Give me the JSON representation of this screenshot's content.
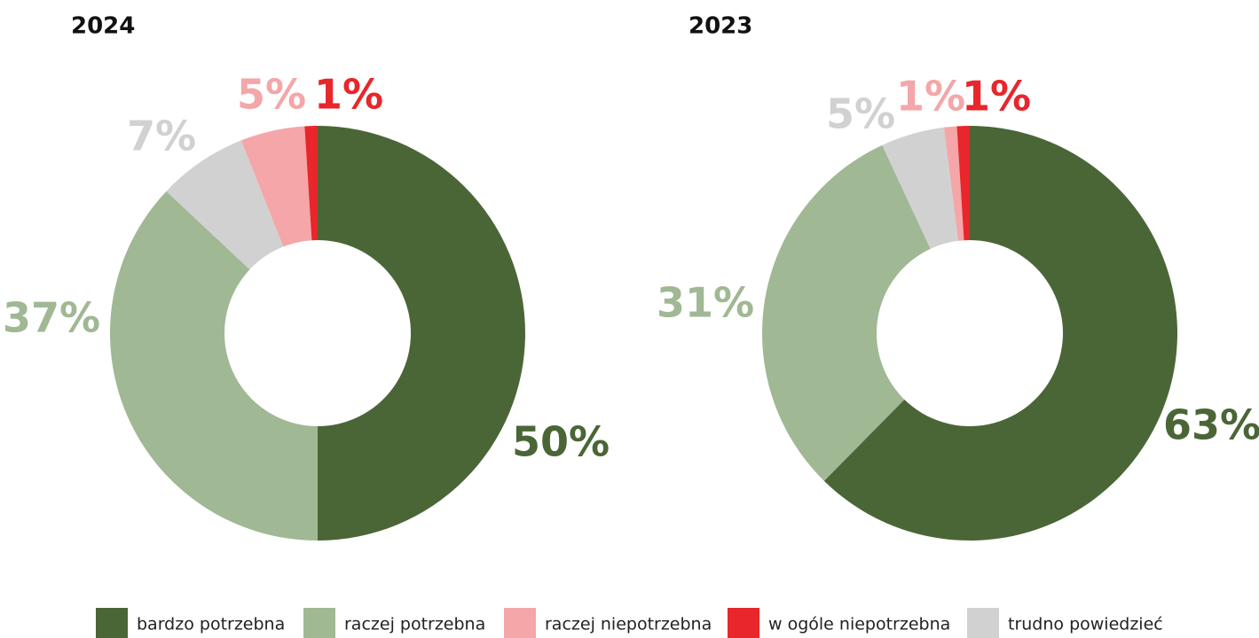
{
  "chart_data": [
    {
      "type": "pie",
      "title": "2024",
      "categories": [
        "bardzo potrzebna",
        "raczej potrzebna",
        "trudno powiedzieć",
        "raczej niepotrzebna",
        "w ogóle niepotrzebna"
      ],
      "values": [
        50,
        37,
        7,
        5,
        1
      ],
      "value_labels": [
        "50%",
        "37%",
        "7%",
        "5%",
        "1%"
      ],
      "colors": [
        "#4a6637",
        "#a0b894",
        "#d1d1d1",
        "#f4a6a8",
        "#e8262b"
      ]
    },
    {
      "type": "pie",
      "title": "2023",
      "categories": [
        "bardzo potrzebna",
        "raczej potrzebna",
        "trudno powiedzieć",
        "raczej niepotrzebna",
        "w ogóle niepotrzebna"
      ],
      "values": [
        63,
        31,
        5,
        1,
        1
      ],
      "value_labels": [
        "63%",
        "31%",
        "5%",
        "1%",
        "1%"
      ],
      "colors": [
        "#4a6637",
        "#a0b894",
        "#d1d1d1",
        "#f4a6a8",
        "#e8262b"
      ]
    }
  ],
  "legend": [
    {
      "name": "bardzo potrzebna",
      "color": "#4a6637"
    },
    {
      "name": "raczej potrzebna",
      "color": "#a0b894"
    },
    {
      "name": "raczej niepotrzebna",
      "color": "#f4a6a8"
    },
    {
      "name": "w ogóle niepotrzebna",
      "color": "#e8262b"
    },
    {
      "name": "trudno powiedzieć",
      "color": "#d1d1d1"
    }
  ]
}
